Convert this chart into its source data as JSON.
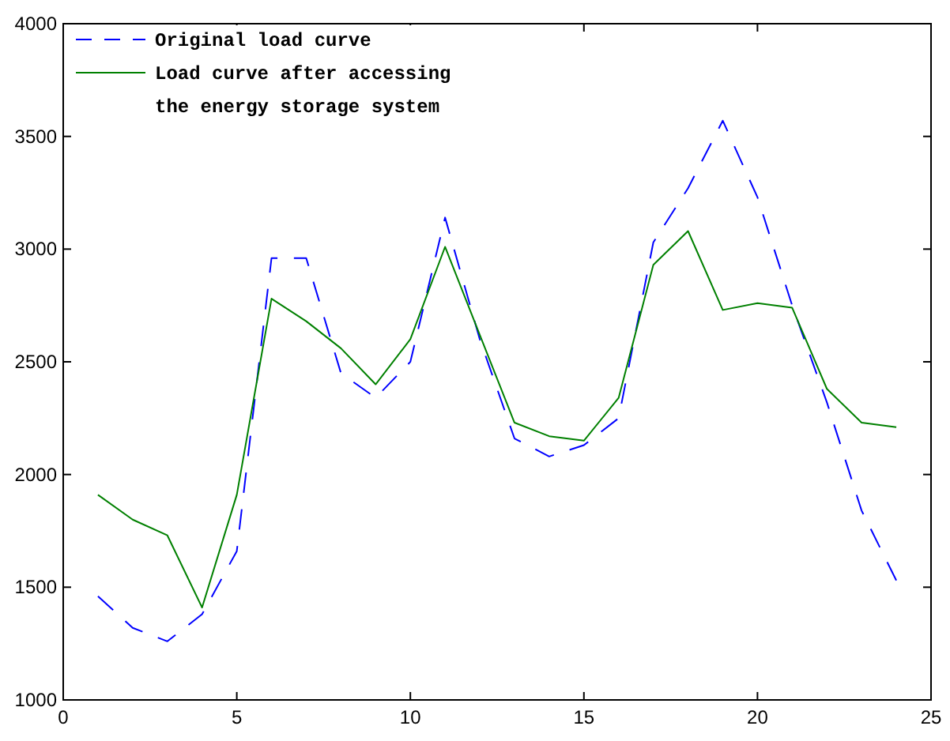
{
  "chart_data": {
    "type": "line",
    "x": [
      1,
      2,
      3,
      4,
      5,
      6,
      7,
      8,
      9,
      10,
      11,
      12,
      13,
      14,
      15,
      16,
      17,
      18,
      19,
      20,
      21,
      22,
      23,
      24
    ],
    "series": [
      {
        "name": "Original load curve",
        "color": "#0000ff",
        "line_style": "dashed",
        "values": [
          1460,
          1320,
          1260,
          1380,
          1660,
          2960,
          2960,
          2450,
          2340,
          2500,
          3140,
          2600,
          2160,
          2080,
          2130,
          2250,
          3030,
          3270,
          3570,
          3230,
          2750,
          2320,
          1840,
          1530
        ]
      },
      {
        "name": "Load curve after accessing the energy storage system",
        "color": "#008000",
        "line_style": "solid",
        "values": [
          1910,
          1800,
          1730,
          1410,
          1910,
          2780,
          2680,
          2560,
          2400,
          2600,
          3010,
          2620,
          2230,
          2170,
          2150,
          2340,
          2930,
          3080,
          2730,
          2760,
          2740,
          2380,
          2230,
          2210
        ]
      }
    ],
    "xlim": [
      0,
      25
    ],
    "xticks": [
      0,
      5,
      10,
      15,
      20,
      25
    ],
    "ylim": [
      1000,
      4000
    ],
    "yticks": [
      1000,
      1500,
      2000,
      2500,
      3000,
      3500,
      4000
    ],
    "grid": false,
    "legend": "top left",
    "marker": "none"
  }
}
